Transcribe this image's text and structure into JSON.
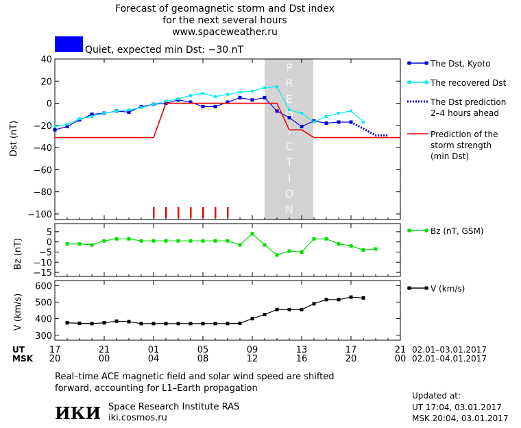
{
  "header": {
    "title_lines": [
      "Forecast of geomagnetic storm and Dst index",
      "for the next several hours",
      "www.spaceweather.ru"
    ],
    "status_text": "Quiet, expected min Dst: −30 nT",
    "status_color": "#0000ff"
  },
  "chart_data": [
    {
      "id": "dst",
      "type": "line",
      "ylabel": "Dst (nT)",
      "ylim": [
        -105,
        40
      ],
      "yticks": [
        40,
        20,
        0,
        -20,
        -40,
        -60,
        -80,
        -100
      ],
      "prediction_label": "PREDICTION",
      "prediction_region": [
        17,
        21
      ],
      "series": [
        {
          "name": "The Dst, Kyoto",
          "color": "#0000dd",
          "x": [
            0,
            1,
            2,
            3,
            4,
            5,
            6,
            7,
            8,
            9,
            10,
            11,
            12,
            13,
            14,
            15,
            16,
            17,
            18,
            19,
            20,
            21,
            22,
            23,
            24
          ],
          "y": [
            -24,
            -21,
            -15,
            -10,
            -9,
            -7,
            -8,
            -3,
            -1,
            0,
            3,
            1,
            -3,
            -3,
            1,
            5,
            3,
            5,
            -7,
            -13,
            -21,
            -16,
            -18,
            -17,
            -17
          ]
        },
        {
          "name": "The recovered Dst",
          "color": "#00eeee",
          "x": [
            0,
            1,
            2,
            3,
            4,
            5,
            6,
            7,
            8,
            9,
            10,
            11,
            12,
            13,
            14,
            15,
            16,
            17,
            18,
            19,
            20,
            21,
            22,
            23,
            24,
            25
          ],
          "y": [
            -21,
            -19,
            -14,
            -12,
            -9,
            -7,
            -6,
            -4,
            -1,
            2,
            4,
            7,
            9,
            6,
            8,
            10,
            11,
            14,
            15,
            -6,
            -9,
            -17,
            -12,
            -9,
            -7,
            -17
          ]
        },
        {
          "name": "The Dst prediction\n2–4 hours ahead",
          "color": "#0000cc",
          "x": [
            24,
            25,
            26,
            27
          ],
          "y": [
            -17,
            -23,
            -29,
            -29
          ]
        },
        {
          "name": "Prediction of the\nstorm strength\n(min Dst)",
          "color": "#ee0000",
          "x": [
            0,
            8,
            9,
            16,
            17,
            18,
            19,
            20,
            21,
            28
          ],
          "y": [
            -31,
            -31,
            0,
            0,
            0,
            0,
            -24,
            -24,
            -31,
            -31
          ]
        }
      ],
      "markers_x": [
        8,
        9,
        10,
        11,
        12,
        13,
        14
      ]
    },
    {
      "id": "bz",
      "type": "line",
      "ylabel": "Bz (nT)",
      "ylim": [
        -17,
        9
      ],
      "yticks": [
        5,
        0,
        -5,
        -10,
        -15
      ],
      "series": [
        {
          "name": "Bz (nT, GSM)",
          "color": "#00dd00",
          "x": [
            1,
            2,
            3,
            4,
            5,
            6,
            7,
            8,
            9,
            10,
            11,
            12,
            13,
            14,
            15,
            16,
            17,
            18,
            19,
            20,
            21,
            22,
            23,
            24,
            25,
            26
          ],
          "y": [
            -1,
            -1,
            -1.5,
            0.5,
            1.5,
            1.5,
            0.5,
            0.5,
            0.5,
            0.5,
            0.5,
            0.5,
            0.5,
            0.5,
            -1.5,
            4,
            -1.5,
            -6.5,
            -4.5,
            -5,
            1.5,
            1.5,
            -1,
            -2,
            -4,
            -3.5
          ]
        }
      ]
    },
    {
      "id": "v",
      "type": "line",
      "ylabel": "V (km/s)",
      "ylim": [
        270,
        630
      ],
      "yticks": [
        600,
        500,
        400,
        300
      ],
      "series": [
        {
          "name": "V (km/s)",
          "color": "#000000",
          "x": [
            1,
            2,
            3,
            4,
            5,
            6,
            7,
            8,
            9,
            10,
            11,
            12,
            13,
            14,
            15,
            16,
            17,
            18,
            19,
            20,
            21,
            22,
            23,
            24,
            25
          ],
          "y": [
            375,
            372,
            370,
            375,
            385,
            382,
            370,
            370,
            370,
            370,
            370,
            370,
            370,
            370,
            372,
            400,
            425,
            455,
            455,
            455,
            490,
            515,
            515,
            530,
            525
          ]
        }
      ]
    }
  ],
  "x_axis": {
    "range": [
      0,
      28
    ],
    "ut_label": "UT",
    "msk_label": "MSK",
    "ut_ticks": [
      "17",
      "21",
      "01",
      "05",
      "09",
      "13",
      "17",
      "21"
    ],
    "msk_ticks": [
      "20",
      "00",
      "04",
      "08",
      "12",
      "16",
      "20",
      "00"
    ],
    "tick_positions": [
      0,
      4,
      8,
      12,
      16,
      20,
      24,
      28
    ],
    "ut_range_text": "02.01–03.01.2017",
    "msk_range_text": "02.01–04.01.2017"
  },
  "footer": {
    "note_line1": "Real–time ACE magnetic field and solar wind speed are shifted",
    "note_line2": "forward, accounting for L1–Earth propagation",
    "logo_text": "ИКИ",
    "org_name": "Space Research Institute RAS",
    "org_site": "iki.cosmos.ru",
    "updated_label": "Updated at:",
    "updated_ut": "UT   17:04, 03.01.2017",
    "updated_msk": "MSK 20:04, 03.01.2017"
  }
}
